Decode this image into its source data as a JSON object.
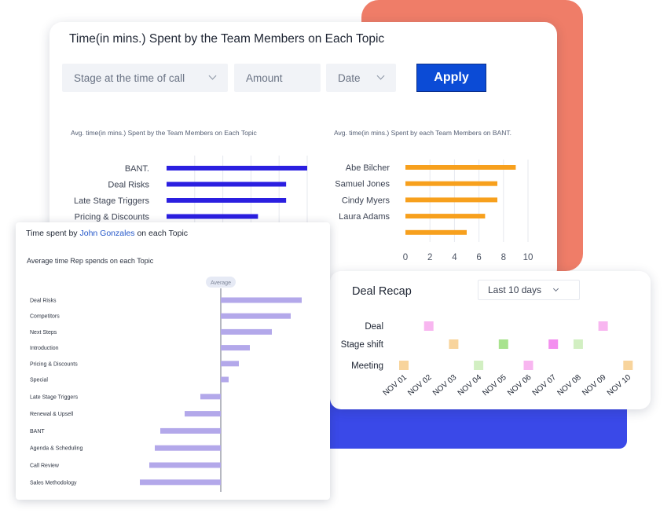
{
  "main_panel": {
    "title": "Time(in mins.) Spent by the Team Members on Each Topic",
    "filters": [
      {
        "label": "Stage at the time of call",
        "has_dropdown": true
      },
      {
        "label": "Amount",
        "has_dropdown": false
      },
      {
        "label": "Date",
        "has_dropdown": true
      }
    ],
    "apply_label": "Apply",
    "accent_color": "#0b4bd6"
  },
  "chart_data": [
    {
      "type": "bar",
      "orientation": "horizontal",
      "title": "Avg. time(in mins.) Spent by the Team Members on Each Topic",
      "categories": [
        "BANT.",
        "Deal Risks",
        "Late Stage Triggers",
        "Pricing & Discounts"
      ],
      "values": [
        10,
        8.5,
        8.5,
        6.5
      ],
      "xlim": [
        0,
        10
      ],
      "color": "#2b1fe0",
      "grid": true
    },
    {
      "type": "bar",
      "orientation": "horizontal",
      "title": "Avg. time(in mins.) Spent by each Team Members on BANT.",
      "categories": [
        "Abe Bilcher",
        "Samuel Jones",
        "Cindy Myers",
        "Laura Adams",
        ""
      ],
      "values": [
        9,
        7.5,
        7.5,
        6.5,
        5
      ],
      "xlim": [
        0,
        10
      ],
      "xticks": [
        0,
        2,
        4,
        6,
        8,
        10
      ],
      "color": "#f7a01d",
      "grid": true
    },
    {
      "type": "bar",
      "orientation": "diverging",
      "title": "Average time Rep spends on each Topic",
      "reference_label": "Average",
      "categories": [
        "Deal Risks",
        "Competitors",
        "Next Steps",
        "Introduction",
        "Pricing & Discounts",
        "Special",
        "Late Stage Triggers",
        "Renewal & Upsell",
        "BANT",
        "Agenda & Scheduling",
        "Call Review",
        "Sales Methodology"
      ],
      "values": [
        103,
        89,
        65,
        37,
        23,
        10,
        -26,
        -46,
        -77,
        -84,
        -91,
        -103
      ],
      "xlim": [
        -110,
        110
      ],
      "color": "#b3a8ea"
    },
    {
      "type": "scatter",
      "title": "Deal Recap",
      "rows": [
        "Deal",
        "Stage shift",
        "Meeting"
      ],
      "x": [
        "NOV 01",
        "NOV 02",
        "NOV 03",
        "NOV 04",
        "NOV 05",
        "NOV 06",
        "NOV 07",
        "NOV 08",
        "NOV 09",
        "NOV 10"
      ],
      "points": [
        {
          "row": "Deal",
          "x": "NOV 02",
          "color": "#f8b6f0"
        },
        {
          "row": "Deal",
          "x": "NOV 09",
          "color": "#f8b6f0"
        },
        {
          "row": "Stage shift",
          "x": "NOV 03",
          "color": "#f8d49c"
        },
        {
          "row": "Stage shift",
          "x": "NOV 05",
          "color": "#a8e38e"
        },
        {
          "row": "Stage shift",
          "x": "NOV 07",
          "color": "#f38fef"
        },
        {
          "row": "Stage shift",
          "x": "NOV 08",
          "color": "#d2efc2"
        },
        {
          "row": "Meeting",
          "x": "NOV 01",
          "color": "#f8d49c"
        },
        {
          "row": "Meeting",
          "x": "NOV 04",
          "color": "#d2efc2"
        },
        {
          "row": "Meeting",
          "x": "NOV 06",
          "color": "#f8b6f0"
        },
        {
          "row": "Meeting",
          "x": "NOV 10",
          "color": "#f8d49c"
        }
      ]
    }
  ],
  "rep_panel": {
    "title_prefix": "Time spent by ",
    "rep_name": "John Gonzales",
    "title_suffix": " on each Topic"
  },
  "recap_panel": {
    "period_select": "Last 10 days"
  }
}
